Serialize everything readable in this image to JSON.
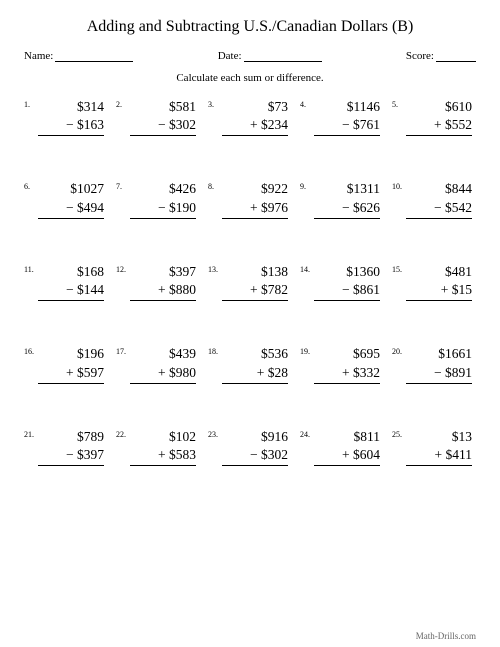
{
  "title": "Adding and Subtracting U.S./Canadian Dollars (B)",
  "header": {
    "name_label": "Name:",
    "date_label": "Date:",
    "score_label": "Score:"
  },
  "instruction": "Calculate each sum or difference.",
  "problems": [
    {
      "n": "1.",
      "top": "$314",
      "bot": "− $163"
    },
    {
      "n": "2.",
      "top": "$581",
      "bot": "− $302"
    },
    {
      "n": "3.",
      "top": "$73",
      "bot": "+ $234"
    },
    {
      "n": "4.",
      "top": "$1146",
      "bot": "− $761"
    },
    {
      "n": "5.",
      "top": "$610",
      "bot": "+ $552"
    },
    {
      "n": "6.",
      "top": "$1027",
      "bot": "− $494"
    },
    {
      "n": "7.",
      "top": "$426",
      "bot": "− $190"
    },
    {
      "n": "8.",
      "top": "$922",
      "bot": "+ $976"
    },
    {
      "n": "9.",
      "top": "$1311",
      "bot": "− $626"
    },
    {
      "n": "10.",
      "top": "$844",
      "bot": "− $542"
    },
    {
      "n": "11.",
      "top": "$168",
      "bot": "− $144"
    },
    {
      "n": "12.",
      "top": "$397",
      "bot": "+ $880"
    },
    {
      "n": "13.",
      "top": "$138",
      "bot": "+ $782"
    },
    {
      "n": "14.",
      "top": "$1360",
      "bot": "− $861"
    },
    {
      "n": "15.",
      "top": "$481",
      "bot": "+ $15"
    },
    {
      "n": "16.",
      "top": "$196",
      "bot": "+ $597"
    },
    {
      "n": "17.",
      "top": "$439",
      "bot": "+ $980"
    },
    {
      "n": "18.",
      "top": "$536",
      "bot": "+ $28"
    },
    {
      "n": "19.",
      "top": "$695",
      "bot": "+ $332"
    },
    {
      "n": "20.",
      "top": "$1661",
      "bot": "− $891"
    },
    {
      "n": "21.",
      "top": "$789",
      "bot": "− $397"
    },
    {
      "n": "22.",
      "top": "$102",
      "bot": "+ $583"
    },
    {
      "n": "23.",
      "top": "$916",
      "bot": "− $302"
    },
    {
      "n": "24.",
      "top": "$811",
      "bot": "+ $604"
    },
    {
      "n": "25.",
      "top": "$13",
      "bot": "+ $411"
    }
  ],
  "footer": "Math-Drills.com"
}
